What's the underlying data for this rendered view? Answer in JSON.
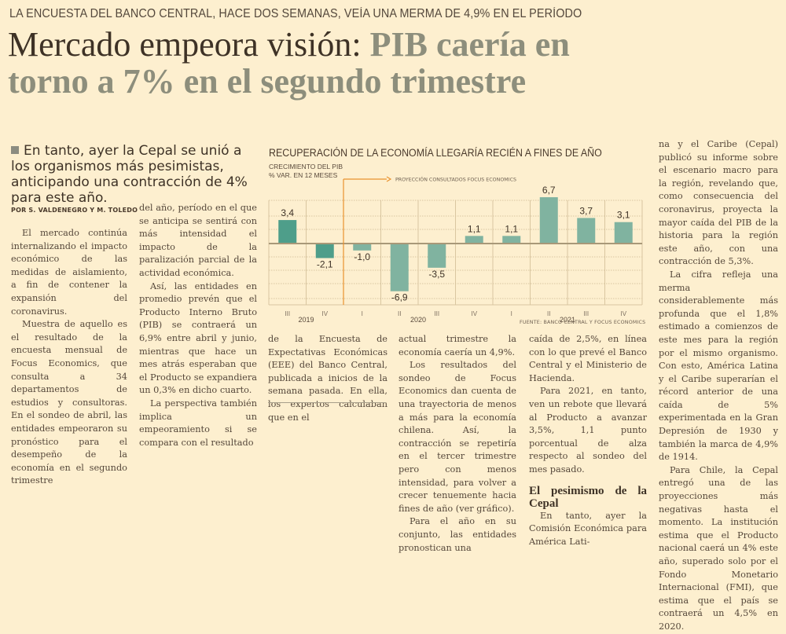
{
  "article": {
    "kicker": "LA ENCUESTA DEL BANCO CENTRAL, HACE DOS SEMANAS, VEÍA UNA MERMA DE 4,9% EN EL PERÍODO",
    "headline_part1": "Mercado empeora visión: ",
    "headline_part2": "PIB caería en",
    "headline_line2": "torno a 7% en el segundo trimestre",
    "deck": "En tanto, ayer la Cepal se unió a los organismos más pesimistas, anticipando una contracción de 4% para este año.",
    "byline": "POR S. VALDENEGRO Y M. TOLEDO",
    "columns": {
      "c1": [
        "El mercado continúa internalizando el impacto económico de las medidas de aislamiento, a fin de contener la expansión del coronavirus.",
        "Muestra de aquello es el resultado de la encuesta mensual de Focus Economics, que consulta a 34 departamentos de estudios y consultoras. En el sondeo de abril, las entidades empeoraron su pronóstico para el desempeño de la economía en el segundo trimestre"
      ],
      "c2": [
        "del año, período en el que se anticipa se sentirá con más intensidad el impacto de la paralización parcial de la actividad económica.",
        "Así, las entidades en promedio prevén que el Producto Interno Bruto (PIB) se contraerá un 6,9% entre abril y junio, mientras que hace un mes atrás esperaban que el Producto se expandiera un 0,3% en dicho cuarto.",
        "La perspectiva también implica un empeoramiento si se compara con el resultado"
      ],
      "c3": [
        "de la Encuesta de Expectativas Económicas (EEE) del Banco Central, publicada a inicios de la semana pasada. En ella, los expertos calculaban que en el"
      ],
      "c4": [
        "actual trimestre la economía caería un 4,9%.",
        "Los resultados del sondeo de Focus Economics dan cuenta de una trayectoria de menos a más para la economía chilena. Así, la contracción se repetiría en el tercer trimestre pero con menos intensidad, para volver a crecer tenuemente hacia fines de año (ver gráfico).",
        "Para el año en su conjunto, las entidades pronostican una"
      ],
      "c5": [
        "caída de 2,5%, en línea con lo que prevé el Banco Central y el Ministerio de Hacienda.",
        "Para 2021, en tanto, ven un rebote que llevará al Producto a avanzar 3,5%, 1,1 punto porcentual de alza respecto al sondeo del mes pasado."
      ],
      "c5_subhead": "El pesimismo de la Cepal",
      "c5_after": [
        "En tanto, ayer la Comisión Económica para América Lati-"
      ],
      "c6": [
        "na y el Caribe (Cepal) publicó su informe sobre el escenario macro para la región, revelando que, como consecuencia del coronavirus, proyecta la mayor caída del PIB de la historia para la región este año, con una contracción de 5,3%.",
        "La cifra refleja una merma considerablemente más profunda que el 1,8% estimado a comienzos de este mes para la región por el mismo organismo. Con esto, América Latina y el Caribe superarían el récord anterior de una caída de 5% experimentada en la Gran Depresión de 1930 y también la marca de 4,9% de 1914.",
        "Para Chile, la Cepal entregó una de las proyecciones más negativas hasta el momento. La institución estima que el Producto nacional caerá un 4% este año, superado solo por el Fondo Monetario Internacional (FMI), que estima que el país se contraerá un 4,5% en 2020."
      ]
    }
  },
  "chart_data": {
    "type": "bar",
    "title": "RECUPERACIÓN DE LA ECONOMÍA LLEGARÍA RECIÉN A FINES DE AÑO",
    "subtitle_line1": "CRECIMIENTO DEL PIB",
    "subtitle_line2": "% VAR. EN 12 MESES",
    "projection_label": "PROYECCIÓN CONSULTADOS FOCUS ECONOMICS",
    "projection_starts_at_index": 2,
    "categories": [
      "III",
      "IV",
      "I",
      "II",
      "III",
      "IV",
      "I",
      "II",
      "III",
      "IV"
    ],
    "years": [
      {
        "label": "2019",
        "from": 0,
        "to": 1
      },
      {
        "label": "2020",
        "from": 2,
        "to": 5
      },
      {
        "label": "2021",
        "from": 6,
        "to": 9
      }
    ],
    "values": [
      3.4,
      -2.1,
      -1.0,
      -6.9,
      -3.5,
      1.1,
      1.1,
      6.7,
      3.7,
      3.1
    ],
    "value_labels": [
      "3,4",
      "-2,1",
      "-1,0",
      "-6,9",
      "-3,5",
      "1,1",
      "1,1",
      "6,7",
      "3,7",
      "3,1"
    ],
    "ylim": [
      -8,
      8
    ],
    "grid": true,
    "xlabel": "",
    "ylabel": "% var. en 12 meses",
    "colors": {
      "actual": "#4e9e8a",
      "projection": "#80b3a0",
      "projection_marker": "#e9922e",
      "grid": "#d9c6a0",
      "zero_line": "#a89878"
    },
    "source": "FUENTE: BANCO CENTRAL Y FOCUS ECONOMICS"
  }
}
